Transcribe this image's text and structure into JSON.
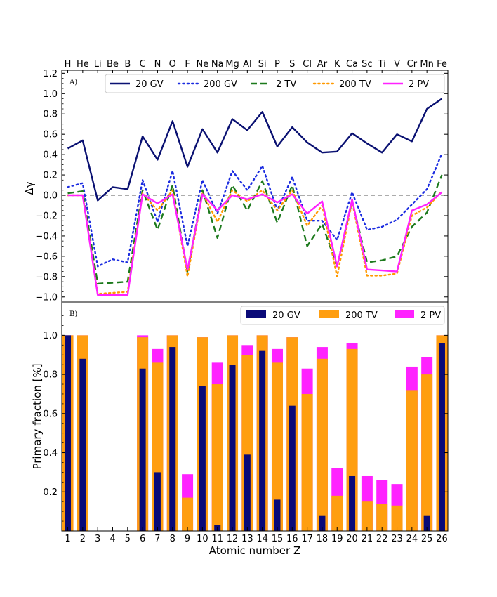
{
  "elements": [
    "H",
    "He",
    "Li",
    "Be",
    "B",
    "C",
    "N",
    "O",
    "F",
    "Ne",
    "Na",
    "Mg",
    "Al",
    "Si",
    "P",
    "S",
    "Cl",
    "Ar",
    "K",
    "Ca",
    "Sc",
    "Ti",
    "V",
    "Cr",
    "Mn",
    "Fe"
  ],
  "chart_data": [
    {
      "type": "line",
      "panel_label": "A)",
      "xlabel": "",
      "ylabel": "Δγ",
      "xlim": [
        0.6,
        26.4
      ],
      "ylim": [
        -1.05,
        1.23
      ],
      "yticks": [
        -1.0,
        -0.8,
        -0.6,
        -0.4,
        -0.2,
        0.0,
        0.2,
        0.4,
        0.6,
        0.8,
        1.0,
        1.2
      ],
      "ytick_labels": [
        "−1.0",
        "−0.8",
        "−0.6",
        "−0.4",
        "−0.2",
        "0.0",
        "0.2",
        "0.4",
        "0.6",
        "0.8",
        "1.0",
        "1.2"
      ],
      "reference_line": 0,
      "legend_position": "top",
      "x": [
        1,
        2,
        3,
        4,
        5,
        6,
        7,
        8,
        9,
        10,
        11,
        12,
        13,
        14,
        15,
        16,
        17,
        18,
        19,
        20,
        21,
        22,
        23,
        24,
        25,
        26
      ],
      "series": [
        {
          "name": "20 GV",
          "color": "#0a1172",
          "style": "solid",
          "values": [
            0.46,
            0.54,
            -0.05,
            0.08,
            0.06,
            0.58,
            0.35,
            0.73,
            0.28,
            0.65,
            0.42,
            0.75,
            0.64,
            0.82,
            0.48,
            0.67,
            0.52,
            0.42,
            0.43,
            0.61,
            0.51,
            0.42,
            0.6,
            0.53,
            0.85,
            0.95
          ]
        },
        {
          "name": "200 GV",
          "color": "#1a2be0",
          "style": "dotted",
          "values": [
            0.08,
            0.12,
            -0.7,
            -0.63,
            -0.66,
            0.15,
            -0.26,
            0.24,
            -0.5,
            0.15,
            -0.18,
            0.24,
            0.05,
            0.29,
            -0.15,
            0.18,
            -0.25,
            -0.25,
            -0.44,
            0.03,
            -0.34,
            -0.31,
            -0.24,
            -0.09,
            0.06,
            0.41
          ]
        },
        {
          "name": "2 TV",
          "color": "#1d7a1d",
          "style": "dashed",
          "values": [
            0.02,
            0.04,
            -0.87,
            -0.86,
            -0.85,
            0.05,
            -0.34,
            0.1,
            -0.76,
            0.05,
            -0.42,
            0.1,
            -0.15,
            0.14,
            -0.27,
            0.1,
            -0.5,
            -0.28,
            -0.7,
            -0.06,
            -0.66,
            -0.64,
            -0.6,
            -0.31,
            -0.17,
            0.2
          ]
        },
        {
          "name": "200 TV",
          "color": "#ff9900",
          "style": "dotted",
          "values": [
            0.0,
            0.0,
            -0.97,
            -0.96,
            -0.95,
            0.02,
            -0.15,
            0.05,
            -0.8,
            0.02,
            -0.26,
            0.05,
            -0.06,
            0.05,
            -0.15,
            0.05,
            -0.3,
            -0.1,
            -0.8,
            -0.06,
            -0.79,
            -0.79,
            -0.77,
            -0.2,
            -0.12,
            0.04
          ]
        },
        {
          "name": "2 PV",
          "color": "#ff22ff",
          "style": "solid",
          "values": [
            0.0,
            0.0,
            -0.98,
            -0.98,
            -0.98,
            0.01,
            -0.08,
            0.01,
            -0.73,
            0.01,
            -0.15,
            0.0,
            -0.04,
            0.01,
            -0.07,
            0.01,
            -0.18,
            -0.06,
            -0.7,
            -0.04,
            -0.73,
            -0.74,
            -0.75,
            -0.15,
            -0.09,
            0.03
          ]
        }
      ]
    },
    {
      "type": "bar",
      "panel_label": "B)",
      "xlabel": "Atomic number Z",
      "ylabel": "Primary fraction [%]",
      "xlim": [
        0.6,
        26.4
      ],
      "ylim": [
        0.0,
        1.17
      ],
      "yticks": [
        0.2,
        0.4,
        0.6,
        0.8,
        1.0
      ],
      "ytick_labels": [
        "0.2",
        "0.4",
        "0.6",
        "0.8",
        "1.0"
      ],
      "legend_position": "top-right",
      "categories": [
        "1",
        "2",
        "3",
        "4",
        "5",
        "6",
        "7",
        "8",
        "9",
        "10",
        "11",
        "12",
        "13",
        "14",
        "15",
        "16",
        "17",
        "18",
        "19",
        "20",
        "21",
        "22",
        "23",
        "24",
        "25",
        "26"
      ],
      "series": [
        {
          "name": "2 PV",
          "color": "#ff22ff",
          "values": [
            1.0,
            1.0,
            0,
            0,
            0,
            1.0,
            0.93,
            1.0,
            0.29,
            0.99,
            0.86,
            1.0,
            0.95,
            1.0,
            0.93,
            0.99,
            0.83,
            0.94,
            0.32,
            0.96,
            0.28,
            0.26,
            0.24,
            0.84,
            0.89,
            1.0
          ]
        },
        {
          "name": "200 TV",
          "color": "#ff9e10",
          "values": [
            1.0,
            1.0,
            0,
            0,
            0,
            0.99,
            0.86,
            1.0,
            0.17,
            0.99,
            0.75,
            1.0,
            0.9,
            1.0,
            0.86,
            0.99,
            0.7,
            0.88,
            0.18,
            0.93,
            0.15,
            0.14,
            0.13,
            0.72,
            0.8,
            1.0
          ]
        },
        {
          "name": "20 GV",
          "color": "#0a0a78",
          "values": [
            1.0,
            0.88,
            0,
            0,
            0,
            0.83,
            0.3,
            0.94,
            0,
            0.74,
            0.03,
            0.85,
            0.39,
            0.92,
            0.16,
            0.64,
            0,
            0.08,
            0,
            0.28,
            0,
            0,
            0,
            0,
            0.08,
            0.96
          ]
        }
      ]
    }
  ]
}
